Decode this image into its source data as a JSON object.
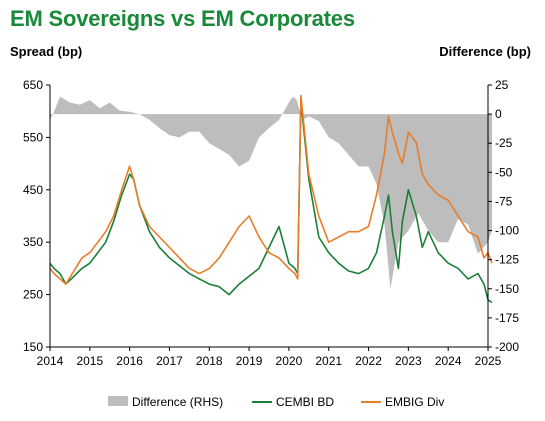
{
  "chart_data": {
    "type": "line",
    "title": "EM Sovereigns vs EM Corporates",
    "ylabel_left": "Spread (bp)",
    "ylabel_right": "Difference (bp)",
    "ylim_left": [
      150,
      650
    ],
    "ylim_right": [
      -200,
      25
    ],
    "yticks_left": [
      650,
      550,
      450,
      350,
      250,
      150
    ],
    "yticks_right": [
      25,
      0,
      -25,
      -50,
      -75,
      -100,
      -125,
      -150,
      -175,
      -200
    ],
    "xlim": [
      2014,
      2025
    ],
    "xticks": [
      2014,
      2015,
      2016,
      2017,
      2018,
      2019,
      2020,
      2021,
      2022,
      2023,
      2024,
      2025
    ],
    "legend_position": "bottom",
    "series": [
      {
        "name": "Difference (RHS)",
        "type": "area",
        "axis": "right",
        "color": "#bdbdbd",
        "x": [
          2014.0,
          2014.1,
          2014.25,
          2014.5,
          2014.75,
          2015.0,
          2015.25,
          2015.5,
          2015.75,
          2016.0,
          2016.25,
          2016.5,
          2016.75,
          2017.0,
          2017.25,
          2017.5,
          2017.75,
          2018.0,
          2018.25,
          2018.5,
          2018.75,
          2019.0,
          2019.25,
          2019.5,
          2019.75,
          2020.0,
          2020.1,
          2020.2,
          2020.25,
          2020.35,
          2020.5,
          2020.75,
          2021.0,
          2021.25,
          2021.5,
          2021.75,
          2022.0,
          2022.2,
          2022.4,
          2022.55,
          2022.75,
          2023.0,
          2023.25,
          2023.5,
          2023.75,
          2024.0,
          2024.25,
          2024.5,
          2024.75,
          2025.0,
          2025.1
        ],
        "values": [
          -5,
          2,
          15,
          10,
          8,
          12,
          5,
          10,
          3,
          2,
          0,
          -5,
          -12,
          -18,
          -20,
          -15,
          -15,
          -25,
          -30,
          -35,
          -45,
          -40,
          -20,
          -12,
          -5,
          10,
          15,
          12,
          5,
          -5,
          -2,
          -6,
          -20,
          -25,
          -35,
          -45,
          -45,
          -60,
          -95,
          -150,
          -110,
          -100,
          -85,
          -100,
          -110,
          -110,
          -90,
          -95,
          -120,
          -110,
          -100
        ]
      },
      {
        "name": "CEMBI BD",
        "axis": "left",
        "color": "#1a7f37",
        "x": [
          2014.0,
          2014.1,
          2014.25,
          2014.4,
          2014.6,
          2014.8,
          2015.0,
          2015.2,
          2015.4,
          2015.6,
          2015.8,
          2016.0,
          2016.1,
          2016.25,
          2016.5,
          2016.75,
          2017.0,
          2017.25,
          2017.5,
          2017.75,
          2018.0,
          2018.25,
          2018.5,
          2018.75,
          2019.0,
          2019.25,
          2019.5,
          2019.75,
          2020.0,
          2020.15,
          2020.22,
          2020.3,
          2020.5,
          2020.75,
          2021.0,
          2021.25,
          2021.5,
          2021.75,
          2022.0,
          2022.2,
          2022.4,
          2022.5,
          2022.6,
          2022.75,
          2022.85,
          2023.0,
          2023.2,
          2023.35,
          2023.5,
          2023.75,
          2024.0,
          2024.25,
          2024.5,
          2024.75,
          2024.9,
          2025.0,
          2025.1
        ],
        "values": [
          310,
          300,
          290,
          270,
          285,
          300,
          310,
          330,
          350,
          390,
          440,
          480,
          470,
          420,
          370,
          340,
          320,
          305,
          290,
          280,
          270,
          265,
          250,
          270,
          285,
          300,
          340,
          380,
          310,
          300,
          290,
          620,
          470,
          360,
          330,
          310,
          295,
          290,
          300,
          330,
          400,
          440,
          370,
          300,
          390,
          450,
          400,
          340,
          370,
          330,
          310,
          300,
          280,
          290,
          270,
          240,
          235
        ]
      },
      {
        "name": "EMBIG Div",
        "axis": "left",
        "color": "#e87d2a",
        "x": [
          2014.0,
          2014.1,
          2014.25,
          2014.4,
          2014.6,
          2014.8,
          2015.0,
          2015.2,
          2015.4,
          2015.6,
          2015.8,
          2016.0,
          2016.1,
          2016.25,
          2016.5,
          2016.75,
          2017.0,
          2017.25,
          2017.5,
          2017.75,
          2018.0,
          2018.25,
          2018.5,
          2018.75,
          2019.0,
          2019.25,
          2019.5,
          2019.75,
          2020.0,
          2020.15,
          2020.22,
          2020.3,
          2020.5,
          2020.75,
          2021.0,
          2021.25,
          2021.5,
          2021.75,
          2022.0,
          2022.2,
          2022.4,
          2022.5,
          2022.6,
          2022.75,
          2022.85,
          2023.0,
          2023.2,
          2023.35,
          2023.5,
          2023.75,
          2024.0,
          2024.25,
          2024.5,
          2024.75,
          2024.9,
          2025.0,
          2025.1
        ],
        "values": [
          300,
          290,
          280,
          270,
          295,
          320,
          330,
          350,
          370,
          400,
          450,
          495,
          470,
          420,
          380,
          360,
          340,
          320,
          300,
          290,
          300,
          320,
          350,
          380,
          400,
          360,
          330,
          320,
          300,
          290,
          280,
          630,
          480,
          400,
          350,
          360,
          370,
          370,
          380,
          440,
          520,
          590,
          560,
          520,
          500,
          560,
          540,
          480,
          460,
          440,
          430,
          400,
          370,
          360,
          320,
          330,
          310
        ]
      }
    ]
  }
}
